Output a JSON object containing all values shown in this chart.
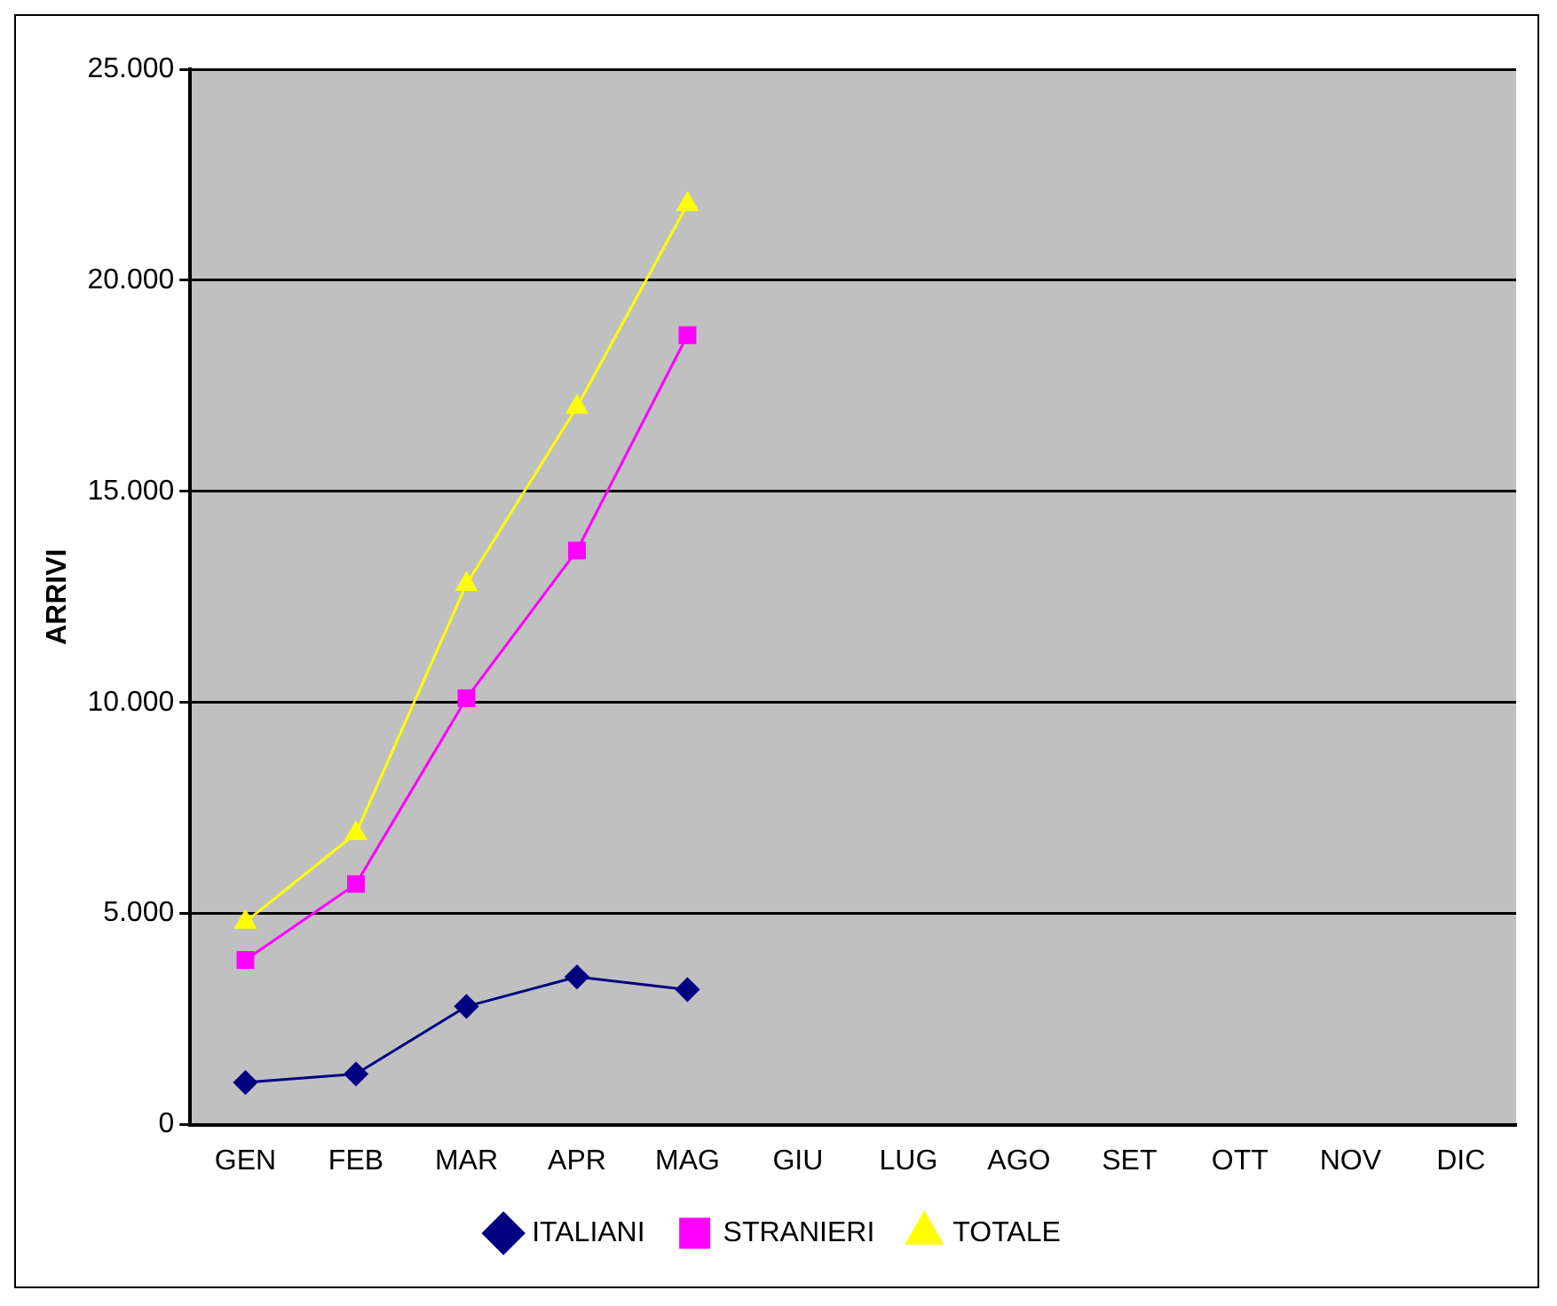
{
  "chart_data": {
    "type": "line",
    "ylabel": "ARRIVI",
    "categories": [
      "GEN",
      "FEB",
      "MAR",
      "APR",
      "MAG",
      "GIU",
      "LUG",
      "AGO",
      "SET",
      "OTT",
      "NOV",
      "DIC"
    ],
    "series": [
      {
        "name": "ITALIANI",
        "color": "#000080",
        "marker": "diamond",
        "values": [
          1000,
          1200,
          2800,
          3500,
          3200,
          null,
          null,
          null,
          null,
          null,
          null,
          null
        ]
      },
      {
        "name": "STRANIERI",
        "color": "#ff00ff",
        "marker": "square",
        "values": [
          3900,
          5700,
          10100,
          13600,
          18700,
          null,
          null,
          null,
          null,
          null,
          null,
          null
        ]
      },
      {
        "name": "TOTALE",
        "color": "#ffff00",
        "marker": "triangle",
        "values": [
          4800,
          6900,
          12800,
          17000,
          21800,
          null,
          null,
          null,
          null,
          null,
          null,
          null
        ]
      }
    ],
    "ylim": [
      0,
      25000
    ],
    "yticks": [
      {
        "value": 0,
        "label": "0"
      },
      {
        "value": 5000,
        "label": "5.000"
      },
      {
        "value": 10000,
        "label": "10.000"
      },
      {
        "value": 15000,
        "label": "15.000"
      },
      {
        "value": 20000,
        "label": "20.000"
      },
      {
        "value": 25000,
        "label": "25.000"
      }
    ],
    "grid": "y",
    "legend": "bottom"
  }
}
